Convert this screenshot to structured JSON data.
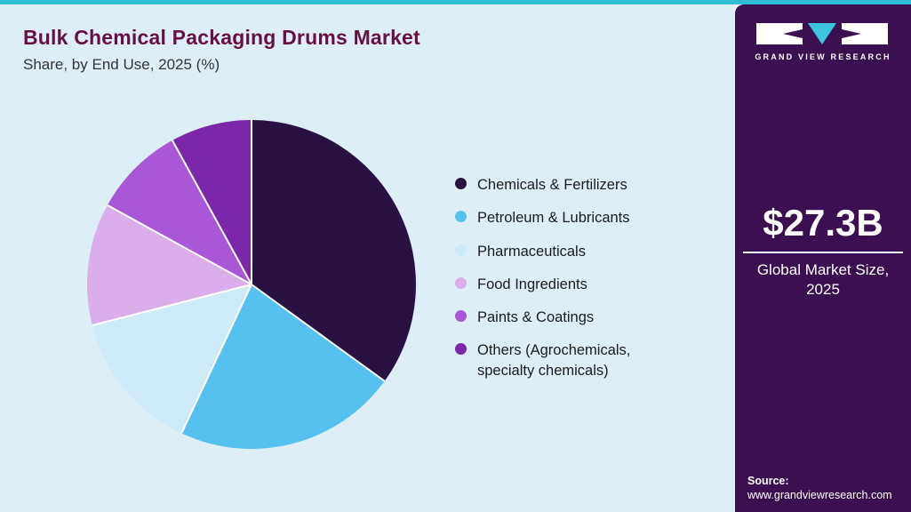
{
  "accent": {
    "top_bar_color": "#2fbcd6",
    "sidebar_color": "#3a1052",
    "title_color": "#661143",
    "main_bg_color": "#ddeef7"
  },
  "header": {
    "title": "Bulk Chemical Packaging Drums Market",
    "subtitle": "Share, by End Use, 2025 (%)"
  },
  "chart_data": {
    "type": "pie",
    "title": "Bulk Chemical Packaging Drums Market Share, by End Use, 2025 (%)",
    "categories": [
      "Chemicals & Fertilizers",
      "Petroleum & Lubricants",
      "Pharmaceuticals",
      "Food Ingredients",
      "Paints & Coatings",
      "Others (Agrochemicals, specialty chemicals)"
    ],
    "values": [
      35,
      22,
      14,
      12,
      9,
      8
    ],
    "unit": "%",
    "colors": [
      "#2a1144",
      "#56c1ee",
      "#cfeaf8",
      "#d9aeea",
      "#a957d6",
      "#7c27a9"
    ],
    "start_angle_deg": 0,
    "direction": "clockwise",
    "legend_position": "right",
    "slice_separator_color": "#ffffff"
  },
  "sidebar": {
    "logo_text": "GRAND VIEW RESEARCH",
    "market_size": {
      "value": "$27.3B",
      "label_line1": "Global Market Size,",
      "label_line2": "2025"
    },
    "source": {
      "label": "Source:",
      "url": "www.grandviewresearch.com"
    }
  }
}
